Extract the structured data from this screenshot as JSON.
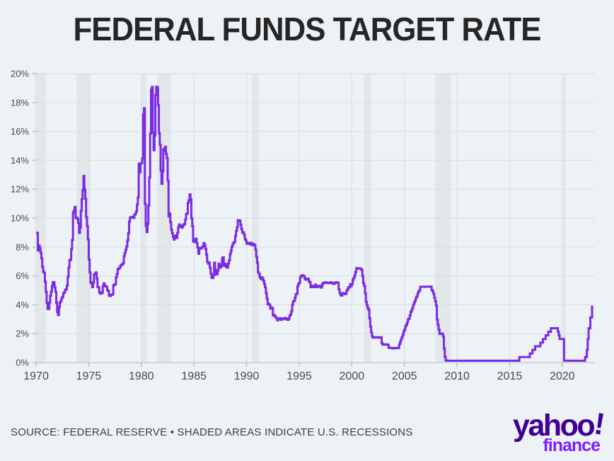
{
  "page": {
    "background": "#edf2f6"
  },
  "header": {
    "title": "FEDERAL FUNDS TARGET RATE"
  },
  "footer": {
    "source_text": "SOURCE: FEDERAL RESERVE • SHADED AREAS INDICATE U.S. RECESSIONS"
  },
  "logo": {
    "brand": "yahoo",
    "bang": "!",
    "sub": "finance",
    "brand_color": "#400093",
    "sub_color": "#7e1fff"
  },
  "chart_data": {
    "type": "line",
    "title": "FEDERAL FUNDS TARGET RATE",
    "xlabel": "",
    "ylabel": "",
    "step": true,
    "grid": true,
    "line_color": "#7b2be2",
    "grid_color": "#dbe0e5",
    "vgrid_color": "#dee3e7",
    "axis_color": "#c6ccd2",
    "tick_color": "#b9bfc6",
    "label_color": "#474b50",
    "recession_band_color": "#e2e7ea",
    "xlim": [
      1969.66,
      2023.1
    ],
    "ylim": [
      0,
      20
    ],
    "x_ticks": [
      1970,
      1975,
      1980,
      1985,
      1990,
      1995,
      2000,
      2005,
      2010,
      2015,
      2020
    ],
    "x_tick_labels": [
      "1970",
      "1975",
      "1980",
      "1985",
      "1990",
      "1995",
      "2000",
      "2005",
      "2010",
      "2015",
      "2020"
    ],
    "y_ticks": [
      0,
      2,
      4,
      6,
      8,
      10,
      12,
      14,
      16,
      18,
      20
    ],
    "y_tick_labels": [
      "0%",
      "2%",
      "4%",
      "6%",
      "8%",
      "10%",
      "12%",
      "14%",
      "16%",
      "18%",
      "20%"
    ],
    "legend": null,
    "recessions": [
      [
        1969.92,
        1970.92
      ],
      [
        1973.83,
        1975.17
      ],
      [
        1980.0,
        1980.5
      ],
      [
        1981.5,
        1982.83
      ],
      [
        1990.5,
        1991.17
      ],
      [
        2001.17,
        2001.83
      ],
      [
        2007.92,
        2009.42
      ],
      [
        2020.08,
        2020.33
      ]
    ],
    "series": [
      {
        "name": "Federal funds target rate (%)",
        "start_year": 1970,
        "frequency": "monthly",
        "values_by_year": [
          [
            8.98,
            8.98,
            7.76,
            8.1,
            7.95,
            7.61,
            7.21,
            6.62,
            6.29,
            6.2,
            5.6,
            4.9
          ],
          [
            4.14,
            3.72,
            3.71,
            4.15,
            4.63,
            4.91,
            5.31,
            5.57,
            5.55,
            5.2,
            4.91,
            4.14
          ],
          [
            3.5,
            3.29,
            3.83,
            4.17,
            4.27,
            4.46,
            4.55,
            4.8,
            4.87,
            5.04,
            5.06,
            5.33
          ],
          [
            5.94,
            6.58,
            7.09,
            7.12,
            7.84,
            8.49,
            10.4,
            10.5,
            10.78,
            10.01,
            10.03,
            9.95
          ],
          [
            9.65,
            8.97,
            9.35,
            10.51,
            11.31,
            11.93,
            12.92,
            12.01,
            11.34,
            10.06,
            9.45,
            8.53
          ],
          [
            7.13,
            6.24,
            5.54,
            5.49,
            5.22,
            5.55,
            6.1,
            6.14,
            6.24,
            5.82,
            5.22,
            5.2
          ],
          [
            4.87,
            4.77,
            4.84,
            4.82,
            5.29,
            5.48,
            5.31,
            5.29,
            5.25,
            5.02,
            4.95,
            4.65
          ],
          [
            4.61,
            4.68,
            4.69,
            4.73,
            5.35,
            5.39,
            5.42,
            5.9,
            6.14,
            6.47,
            6.51,
            6.56
          ],
          [
            6.7,
            6.78,
            6.79,
            6.89,
            7.36,
            7.6,
            7.81,
            8.04,
            8.45,
            8.96,
            9.76,
            10.03
          ],
          [
            10.07,
            10.06,
            10.09,
            10.01,
            10.24,
            10.29,
            10.47,
            10.94,
            11.43,
            13.77,
            13.18,
            13.78
          ],
          [
            13.82,
            14.13,
            17.19,
            17.61,
            10.98,
            9.47,
            9.03,
            9.61,
            10.87,
            12.81,
            15.85,
            18.9
          ],
          [
            19.08,
            15.93,
            14.7,
            15.72,
            18.52,
            19.1,
            19.04,
            17.82,
            15.87,
            15.08,
            13.31,
            12.37
          ],
          [
            13.22,
            14.78,
            14.68,
            14.94,
            14.45,
            14.15,
            12.59,
            10.12,
            10.31,
            9.71,
            9.2,
            8.95
          ],
          [
            8.68,
            8.51,
            8.77,
            8.8,
            8.63,
            8.98,
            9.37,
            9.56,
            9.45,
            9.48,
            9.34,
            9.47
          ],
          [
            9.56,
            9.59,
            9.91,
            10.29,
            10.32,
            11.06,
            11.23,
            11.64,
            11.3,
            9.99,
            9.43,
            8.38
          ],
          [
            8.35,
            8.5,
            8.58,
            8.27,
            7.97,
            7.53,
            7.88,
            7.9,
            7.92,
            7.99,
            8.05,
            8.27
          ],
          [
            8.14,
            7.86,
            7.48,
            6.99,
            6.85,
            6.92,
            6.56,
            6.17,
            5.89,
            5.85,
            6.04,
            6.91
          ],
          [
            6.43,
            6.1,
            6.13,
            6.37,
            6.85,
            6.73,
            6.58,
            6.73,
            7.22,
            7.29,
            6.69,
            6.77
          ],
          [
            6.83,
            6.58,
            6.58,
            6.87,
            7.09,
            7.51,
            7.75,
            8.01,
            8.19,
            8.3,
            8.35,
            8.76
          ],
          [
            9.12,
            9.36,
            9.85,
            9.84,
            9.81,
            9.53,
            9.24,
            8.99,
            9.02,
            8.84,
            8.55,
            8.45
          ],
          [
            8.23,
            8.24,
            8.28,
            8.26,
            8.18,
            8.29,
            8.15,
            8.13,
            8.2,
            8.11,
            7.81,
            7.31
          ],
          [
            6.91,
            6.25,
            6.12,
            5.91,
            5.78,
            5.9,
            5.82,
            5.66,
            5.45,
            5.21,
            4.81,
            4.43
          ],
          [
            4.03,
            4.06,
            3.98,
            3.73,
            3.82,
            3.76,
            3.25,
            3.3,
            3.22,
            3.1,
            3.09,
            2.92
          ],
          [
            3.02,
            3.03,
            3.07,
            2.96,
            3.0,
            3.04,
            3.06,
            3.03,
            3.09,
            2.99,
            3.02,
            2.96
          ],
          [
            3.05,
            3.25,
            3.34,
            3.56,
            4.01,
            4.25,
            4.26,
            4.47,
            4.73,
            4.76,
            5.29,
            5.45
          ],
          [
            5.53,
            5.92,
            5.98,
            6.05,
            6.01,
            6.0,
            5.85,
            5.74,
            5.8,
            5.76,
            5.8,
            5.6
          ],
          [
            5.56,
            5.22,
            5.31,
            5.22,
            5.24,
            5.27,
            5.4,
            5.22,
            5.3,
            5.24,
            5.31,
            5.29
          ],
          [
            5.25,
            5.19,
            5.39,
            5.51,
            5.5,
            5.56,
            5.52,
            5.54,
            5.54,
            5.5,
            5.52,
            5.5
          ],
          [
            5.56,
            5.51,
            5.49,
            5.45,
            5.49,
            5.56,
            5.54,
            5.55,
            5.51,
            5.07,
            4.83,
            4.68
          ],
          [
            4.63,
            4.76,
            4.81,
            4.74,
            4.74,
            4.76,
            4.99,
            5.07,
            5.22,
            5.2,
            5.42,
            5.3
          ],
          [
            5.45,
            5.73,
            5.85,
            6.02,
            6.27,
            6.53,
            6.54,
            6.5,
            6.52,
            6.51,
            6.51,
            6.4
          ],
          [
            5.98,
            5.49,
            5.31,
            4.8,
            4.21,
            3.97,
            3.77,
            3.65,
            3.07,
            2.49,
            2.09,
            1.82
          ],
          [
            1.73,
            1.74,
            1.73,
            1.75,
            1.75,
            1.75,
            1.73,
            1.74,
            1.75,
            1.75,
            1.34,
            1.24
          ],
          [
            1.24,
            1.26,
            1.25,
            1.26,
            1.26,
            1.22,
            1.01,
            1.03,
            1.01,
            1.01,
            1.0,
            0.98
          ],
          [
            1.0,
            1.01,
            1.0,
            1.0,
            1.0,
            1.03,
            1.26,
            1.43,
            1.61,
            1.76,
            1.93,
            2.16
          ],
          [
            2.28,
            2.5,
            2.63,
            2.79,
            3.0,
            3.04,
            3.26,
            3.5,
            3.62,
            3.78,
            4.0,
            4.16
          ],
          [
            4.29,
            4.49,
            4.59,
            4.79,
            4.94,
            4.99,
            5.24,
            5.25,
            5.25,
            5.25,
            5.25,
            5.24
          ],
          [
            5.25,
            5.26,
            5.26,
            5.25,
            5.25,
            5.25,
            5.26,
            5.02,
            4.94,
            4.76,
            4.49,
            4.24
          ],
          [
            3.94,
            2.98,
            2.61,
            2.28,
            1.98,
            2.0,
            2.01,
            2.0,
            1.81,
            0.97,
            0.39,
            0.16
          ],
          [
            0.13,
            0.13,
            0.13,
            0.13,
            0.13,
            0.13,
            0.13,
            0.13,
            0.13,
            0.13,
            0.13,
            0.13
          ],
          [
            0.13,
            0.13,
            0.13,
            0.13,
            0.13,
            0.13,
            0.13,
            0.13,
            0.13,
            0.13,
            0.13,
            0.13
          ],
          [
            0.13,
            0.13,
            0.13,
            0.13,
            0.13,
            0.13,
            0.13,
            0.13,
            0.13,
            0.13,
            0.13,
            0.13
          ],
          [
            0.13,
            0.13,
            0.13,
            0.13,
            0.13,
            0.13,
            0.13,
            0.13,
            0.13,
            0.13,
            0.13,
            0.13
          ],
          [
            0.13,
            0.13,
            0.13,
            0.13,
            0.13,
            0.13,
            0.13,
            0.13,
            0.13,
            0.13,
            0.13,
            0.13
          ],
          [
            0.13,
            0.13,
            0.13,
            0.13,
            0.13,
            0.13,
            0.13,
            0.13,
            0.13,
            0.13,
            0.13,
            0.13
          ],
          [
            0.13,
            0.13,
            0.13,
            0.13,
            0.13,
            0.13,
            0.13,
            0.13,
            0.13,
            0.13,
            0.13,
            0.38
          ],
          [
            0.38,
            0.38,
            0.38,
            0.38,
            0.38,
            0.38,
            0.38,
            0.38,
            0.38,
            0.38,
            0.38,
            0.63
          ],
          [
            0.63,
            0.63,
            0.88,
            0.88,
            0.88,
            1.13,
            1.13,
            1.13,
            1.13,
            1.13,
            1.13,
            1.38
          ],
          [
            1.38,
            1.38,
            1.63,
            1.63,
            1.63,
            1.88,
            1.88,
            1.88,
            2.13,
            2.13,
            2.13,
            2.38
          ],
          [
            2.38,
            2.38,
            2.38,
            2.38,
            2.38,
            2.38,
            2.38,
            2.13,
            1.88,
            1.63,
            1.63,
            1.63
          ],
          [
            1.63,
            1.63,
            0.13,
            0.13,
            0.13,
            0.13,
            0.13,
            0.13,
            0.13,
            0.13,
            0.13,
            0.13
          ],
          [
            0.13,
            0.13,
            0.13,
            0.13,
            0.13,
            0.13,
            0.13,
            0.13,
            0.13,
            0.13,
            0.13,
            0.13
          ],
          [
            0.13,
            0.13,
            0.38,
            0.38,
            0.88,
            1.63,
            2.38,
            2.38,
            3.13,
            3.13,
            3.88
          ]
        ]
      }
    ]
  }
}
